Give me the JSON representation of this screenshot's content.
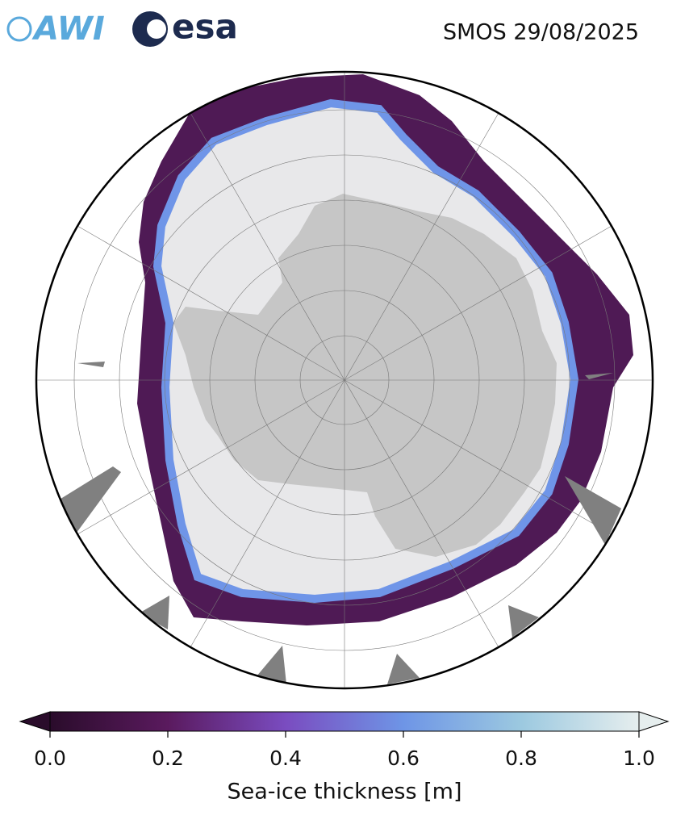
{
  "header": {
    "logos": [
      "AWI",
      "esa"
    ],
    "title": "SMOS 29/08/2025"
  },
  "colorbar": {
    "label": "Sea-ice thickness [m]",
    "lim": [
      0,
      1
    ],
    "ticks": [
      {
        "value": 0,
        "label": "0.0"
      },
      {
        "value": 0.2,
        "label": "0.2"
      },
      {
        "value": 0.4,
        "label": "0.4"
      },
      {
        "value": 0.6,
        "label": "0.6"
      },
      {
        "value": 0.8,
        "label": "0.8"
      },
      {
        "value": 1,
        "label": "1.0"
      }
    ],
    "colors": [
      "#2a0c2b",
      "#5a1a5e",
      "#7a4cc0",
      "#6e95e6",
      "#9cc9e0",
      "#e6eeee"
    ]
  }
}
